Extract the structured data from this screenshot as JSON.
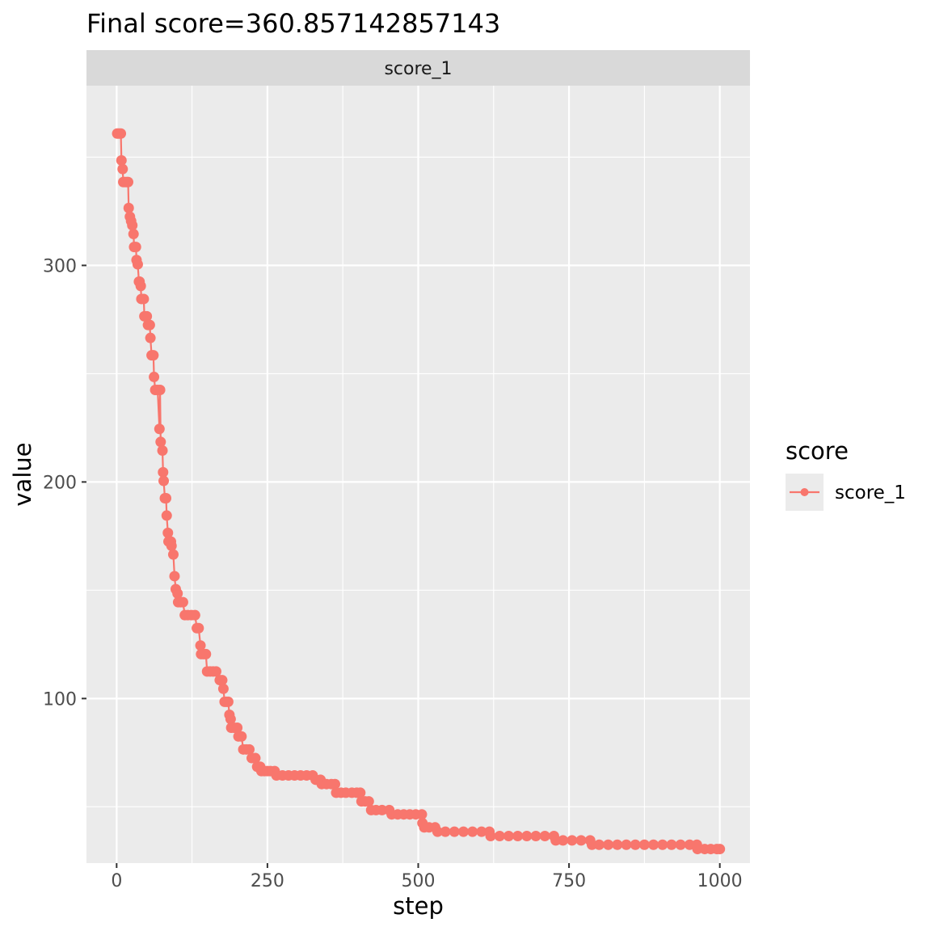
{
  "chart_data": {
    "type": "line",
    "title": "Final score=360.857142857143",
    "facet_label": "score_1",
    "xlabel": "step",
    "ylabel": "value",
    "xlim": [
      -50,
      1050
    ],
    "ylim": [
      24,
      383
    ],
    "x_ticks": [
      0,
      250,
      500,
      750,
      1000
    ],
    "x_tick_labels": [
      "0",
      "250",
      "500",
      "750",
      "1000"
    ],
    "y_ticks": [
      100,
      200,
      300
    ],
    "y_tick_labels": [
      "100",
      "200",
      "300"
    ],
    "grid": true,
    "legend_position": "right",
    "legend": {
      "title": "score",
      "entries": [
        "score_1"
      ]
    },
    "colors": {
      "series": "#F8766D",
      "panel": "#EBEBEB",
      "strip": "#D9D9D9",
      "grid": "#FFFFFF"
    },
    "series": [
      {
        "name": "score_1",
        "points": [
          [
            1,
            360.9
          ],
          [
            4,
            360.9
          ],
          [
            7,
            360.9
          ],
          [
            8,
            348.5
          ],
          [
            10,
            344.5
          ],
          [
            11,
            338.5
          ],
          [
            14,
            338.5
          ],
          [
            17,
            338.5
          ],
          [
            19,
            338.5
          ],
          [
            20,
            326.5
          ],
          [
            22,
            322.5
          ],
          [
            24,
            320.5
          ],
          [
            26,
            318.5
          ],
          [
            28,
            314.5
          ],
          [
            29,
            308.5
          ],
          [
            32,
            308.5
          ],
          [
            33,
            302.5
          ],
          [
            35,
            300.5
          ],
          [
            37,
            292.5
          ],
          [
            38,
            292.5
          ],
          [
            40,
            290.5
          ],
          [
            41,
            284.5
          ],
          [
            45,
            284.5
          ],
          [
            46,
            276.5
          ],
          [
            50,
            276.5
          ],
          [
            52,
            272.5
          ],
          [
            55,
            272.5
          ],
          [
            56,
            266.5
          ],
          [
            58,
            258.5
          ],
          [
            61,
            258.5
          ],
          [
            62,
            248.5
          ],
          [
            64,
            242.5
          ],
          [
            68,
            242.5
          ],
          [
            72,
            242.5
          ],
          [
            71,
            224.5
          ],
          [
            73,
            218.5
          ],
          [
            76,
            214.5
          ],
          [
            77,
            204.5
          ],
          [
            78,
            200.5
          ],
          [
            80,
            192.5
          ],
          [
            82,
            192.5
          ],
          [
            83,
            184.5
          ],
          [
            85,
            176.5
          ],
          [
            86,
            172.5
          ],
          [
            90,
            172.5
          ],
          [
            91,
            170.5
          ],
          [
            94,
            166.5
          ],
          [
            96,
            156.5
          ],
          [
            98,
            150.5
          ],
          [
            101,
            148.5
          ],
          [
            102,
            144.5
          ],
          [
            106,
            144.5
          ],
          [
            110,
            144.5
          ],
          [
            113,
            138.5
          ],
          [
            118,
            138.5
          ],
          [
            124,
            138.5
          ],
          [
            130,
            138.5
          ],
          [
            133,
            132.5
          ],
          [
            136,
            132.5
          ],
          [
            139,
            124.5
          ],
          [
            140,
            120.5
          ],
          [
            144,
            120.5
          ],
          [
            148,
            120.5
          ],
          [
            150,
            112.5
          ],
          [
            155,
            112.5
          ],
          [
            160,
            112.5
          ],
          [
            165,
            112.5
          ],
          [
            171,
            108.5
          ],
          [
            175,
            108.5
          ],
          [
            177,
            104.5
          ],
          [
            179,
            98.5
          ],
          [
            182,
            98.5
          ],
          [
            185,
            98.5
          ],
          [
            187,
            92.5
          ],
          [
            189,
            90.5
          ],
          [
            190,
            86.5
          ],
          [
            195,
            86.5
          ],
          [
            200,
            86.5
          ],
          [
            202,
            82.5
          ],
          [
            207,
            82.5
          ],
          [
            210,
            76.5
          ],
          [
            215,
            76.5
          ],
          [
            220,
            76.5
          ],
          [
            224,
            72.5
          ],
          [
            230,
            72.5
          ],
          [
            233,
            68.5
          ],
          [
            238,
            68.5
          ],
          [
            240,
            66.5
          ],
          [
            245,
            66.5
          ],
          [
            250,
            66.5
          ],
          [
            255,
            66.5
          ],
          [
            262,
            66.5
          ],
          [
            265,
            64.5
          ],
          [
            275,
            64.5
          ],
          [
            285,
            64.5
          ],
          [
            295,
            64.5
          ],
          [
            305,
            64.5
          ],
          [
            315,
            64.5
          ],
          [
            325,
            64.5
          ],
          [
            330,
            62.5
          ],
          [
            338,
            62.5
          ],
          [
            340,
            60.5
          ],
          [
            348,
            60.5
          ],
          [
            356,
            60.5
          ],
          [
            362,
            60.5
          ],
          [
            364,
            56.5
          ],
          [
            372,
            56.5
          ],
          [
            380,
            56.5
          ],
          [
            390,
            56.5
          ],
          [
            398,
            56.5
          ],
          [
            404,
            56.5
          ],
          [
            406,
            52.5
          ],
          [
            412,
            52.5
          ],
          [
            418,
            52.5
          ],
          [
            422,
            48.5
          ],
          [
            430,
            48.5
          ],
          [
            440,
            48.5
          ],
          [
            452,
            48.5
          ],
          [
            456,
            46.5
          ],
          [
            466,
            46.5
          ],
          [
            476,
            46.5
          ],
          [
            486,
            46.5
          ],
          [
            496,
            46.5
          ],
          [
            506,
            46.5
          ],
          [
            507,
            42.5
          ],
          [
            510,
            40.5
          ],
          [
            518,
            40.5
          ],
          [
            528,
            40.5
          ],
          [
            532,
            38.5
          ],
          [
            545,
            38.5
          ],
          [
            560,
            38.5
          ],
          [
            575,
            38.5
          ],
          [
            590,
            38.5
          ],
          [
            605,
            38.5
          ],
          [
            618,
            38.5
          ],
          [
            620,
            36.5
          ],
          [
            635,
            36.5
          ],
          [
            650,
            36.5
          ],
          [
            665,
            36.5
          ],
          [
            680,
            36.5
          ],
          [
            695,
            36.5
          ],
          [
            710,
            36.5
          ],
          [
            725,
            36.5
          ],
          [
            728,
            34.5
          ],
          [
            740,
            34.5
          ],
          [
            755,
            34.5
          ],
          [
            770,
            34.5
          ],
          [
            785,
            34.5
          ],
          [
            788,
            32.5
          ],
          [
            800,
            32.5
          ],
          [
            815,
            32.5
          ],
          [
            830,
            32.5
          ],
          [
            845,
            32.5
          ],
          [
            860,
            32.5
          ],
          [
            875,
            32.5
          ],
          [
            890,
            32.5
          ],
          [
            905,
            32.5
          ],
          [
            920,
            32.5
          ],
          [
            935,
            32.5
          ],
          [
            950,
            32.5
          ],
          [
            962,
            32.5
          ],
          [
            963,
            30.5
          ],
          [
            975,
            30.5
          ],
          [
            985,
            30.5
          ],
          [
            995,
            30.5
          ],
          [
            1000,
            30.5
          ]
        ]
      }
    ]
  }
}
